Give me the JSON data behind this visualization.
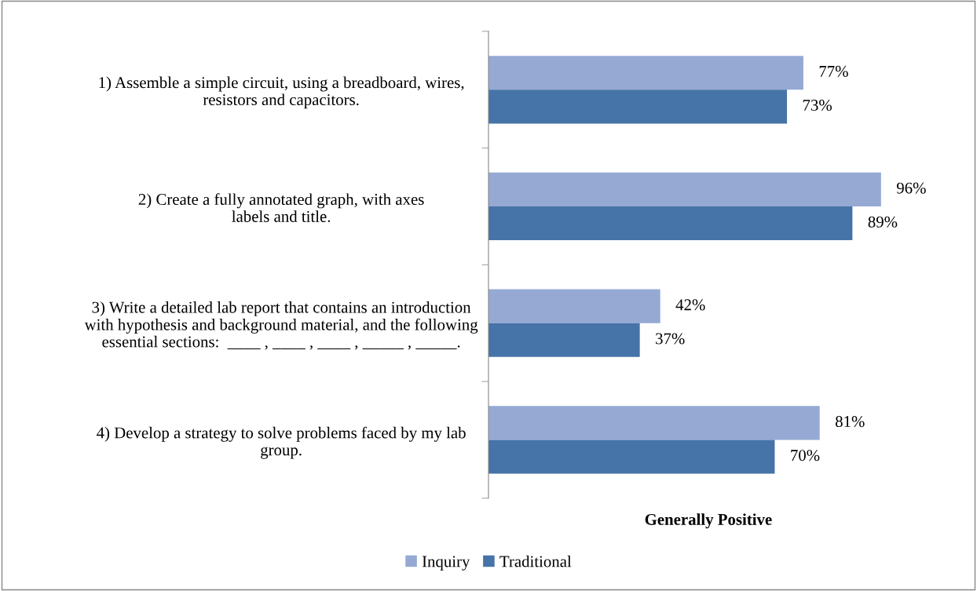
{
  "chart_data": {
    "type": "bar",
    "orientation": "horizontal",
    "xlabel": "Generally Positive",
    "categories": [
      "1) Assemble a simple circuit, using a breadboard, wires,\nresistors and capacitors.",
      "2) Create a fully annotated graph, with axes\nlabels and title.",
      "3) Write a detailed lab report that contains an introduction\nwith hypothesis and background material, and the following\nessential sections:  ____ , ____ , ____ , _____ , _____.",
      "4) Develop a strategy to solve problems faced by my lab\ngroup."
    ],
    "series": [
      {
        "name": "Inquiry",
        "color": "#95a9d3",
        "values": [
          77,
          96,
          42,
          81
        ],
        "value_labels": [
          "77%",
          "96%",
          "42%",
          "81%"
        ]
      },
      {
        "name": "Traditional",
        "color": "#4673a8",
        "values": [
          73,
          89,
          37,
          70
        ],
        "value_labels": [
          "73%",
          "89%",
          "37%",
          "70%"
        ]
      }
    ],
    "legend": "bottom",
    "grid": false
  }
}
